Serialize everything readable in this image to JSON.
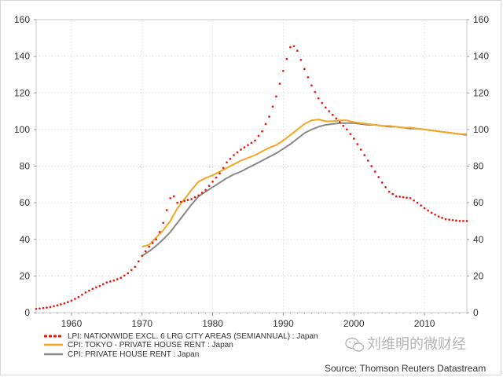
{
  "chart_data": {
    "type": "line",
    "x_range": [
      1955,
      2016
    ],
    "ylim": [
      0,
      160
    ],
    "y_ticks": [
      0,
      20,
      40,
      60,
      80,
      100,
      120,
      140,
      160
    ],
    "x_ticks": [
      1960,
      1970,
      1980,
      1990,
      2000,
      2010
    ],
    "grid": true,
    "legend_position": "bottom-left",
    "series": [
      {
        "name": "LPI: NATIONWIDE EXCL. 6 LRG CITY AREAS (SEMIANNUAL) : Japan",
        "color": "#e8180c",
        "style": "dotted",
        "points": [
          [
            1955,
            2
          ],
          [
            1956,
            2.5
          ],
          [
            1957,
            3
          ],
          [
            1958,
            4
          ],
          [
            1959,
            5
          ],
          [
            1960,
            6.5
          ],
          [
            1961,
            8.5
          ],
          [
            1962,
            11
          ],
          [
            1963,
            13
          ],
          [
            1964,
            14.5
          ],
          [
            1965,
            16.5
          ],
          [
            1966,
            17.5
          ],
          [
            1967,
            19
          ],
          [
            1968,
            21.5
          ],
          [
            1969,
            25
          ],
          [
            1970,
            31
          ],
          [
            1971,
            36
          ],
          [
            1972,
            40
          ],
          [
            1972.5,
            44
          ],
          [
            1973,
            49
          ],
          [
            1973.5,
            56
          ],
          [
            1974,
            62.5
          ],
          [
            1974.5,
            63.5
          ],
          [
            1975,
            60
          ],
          [
            1976,
            61
          ],
          [
            1977,
            62
          ],
          [
            1978,
            64
          ],
          [
            1979,
            67
          ],
          [
            1980,
            71.5
          ],
          [
            1981,
            76
          ],
          [
            1982,
            82
          ],
          [
            1983,
            86
          ],
          [
            1984,
            89
          ],
          [
            1985,
            91.5
          ],
          [
            1986,
            94
          ],
          [
            1987,
            99
          ],
          [
            1988,
            107
          ],
          [
            1989,
            118
          ],
          [
            1990,
            132
          ],
          [
            1991,
            145
          ],
          [
            1991.5,
            145.5
          ],
          [
            1992,
            143
          ],
          [
            1993,
            133
          ],
          [
            1994,
            124
          ],
          [
            1995,
            117
          ],
          [
            1996,
            112
          ],
          [
            1997,
            108
          ],
          [
            1998,
            104
          ],
          [
            1999,
            100
          ],
          [
            2000,
            95
          ],
          [
            2001,
            89
          ],
          [
            2002,
            83
          ],
          [
            2003,
            77
          ],
          [
            2004,
            71
          ],
          [
            2005,
            66
          ],
          [
            2006,
            63.5
          ],
          [
            2007,
            63
          ],
          [
            2008,
            62.5
          ],
          [
            2009,
            60
          ],
          [
            2010,
            57
          ],
          [
            2011,
            54.5
          ],
          [
            2012,
            52.5
          ],
          [
            2013,
            51
          ],
          [
            2014,
            50.5
          ],
          [
            2015,
            50
          ],
          [
            2016,
            50
          ]
        ]
      },
      {
        "name": "CPI: TOKYO - PRIVATE HOUSE RENT : Japan",
        "color": "#f5a623",
        "style": "solid",
        "points": [
          [
            1970,
            36
          ],
          [
            1971,
            37
          ],
          [
            1972,
            41
          ],
          [
            1973,
            45
          ],
          [
            1974,
            50
          ],
          [
            1975,
            57
          ],
          [
            1976,
            62
          ],
          [
            1977,
            67
          ],
          [
            1978,
            71.5
          ],
          [
            1979,
            73.5
          ],
          [
            1980,
            75
          ],
          [
            1981,
            77
          ],
          [
            1982,
            79
          ],
          [
            1983,
            81
          ],
          [
            1984,
            83
          ],
          [
            1985,
            84.5
          ],
          [
            1986,
            86
          ],
          [
            1987,
            88
          ],
          [
            1988,
            90
          ],
          [
            1989,
            91.5
          ],
          [
            1990,
            94
          ],
          [
            1991,
            97
          ],
          [
            1992,
            100
          ],
          [
            1993,
            103
          ],
          [
            1994,
            105
          ],
          [
            1995,
            105.5
          ],
          [
            1996,
            104.5
          ],
          [
            1997,
            104.5
          ],
          [
            1998,
            105
          ],
          [
            1999,
            105
          ],
          [
            2000,
            104
          ],
          [
            2001,
            103.5
          ],
          [
            2002,
            103
          ],
          [
            2003,
            102.5
          ],
          [
            2004,
            102
          ],
          [
            2005,
            102
          ],
          [
            2006,
            101.5
          ],
          [
            2007,
            101
          ],
          [
            2008,
            101
          ],
          [
            2009,
            100.5
          ],
          [
            2010,
            100
          ],
          [
            2011,
            99.5
          ],
          [
            2012,
            99
          ],
          [
            2013,
            98.5
          ],
          [
            2014,
            98
          ],
          [
            2015,
            97.5
          ],
          [
            2016,
            97.5
          ]
        ]
      },
      {
        "name": "CPI: PRIVATE HOUSE RENT : Japan",
        "color": "#888888",
        "style": "solid",
        "points": [
          [
            1970,
            31
          ],
          [
            1971,
            33.5
          ],
          [
            1972,
            36.5
          ],
          [
            1973,
            40
          ],
          [
            1974,
            44
          ],
          [
            1975,
            49
          ],
          [
            1976,
            54
          ],
          [
            1977,
            59
          ],
          [
            1978,
            63.5
          ],
          [
            1979,
            66
          ],
          [
            1980,
            68.5
          ],
          [
            1981,
            71
          ],
          [
            1982,
            73.5
          ],
          [
            1983,
            75.5
          ],
          [
            1984,
            77
          ],
          [
            1985,
            79
          ],
          [
            1986,
            81
          ],
          [
            1987,
            83
          ],
          [
            1988,
            85
          ],
          [
            1989,
            87
          ],
          [
            1990,
            89.5
          ],
          [
            1991,
            92
          ],
          [
            1992,
            95
          ],
          [
            1993,
            98
          ],
          [
            1994,
            100
          ],
          [
            1995,
            101.5
          ],
          [
            1996,
            102.5
          ],
          [
            1997,
            103
          ],
          [
            1998,
            103.5
          ],
          [
            1999,
            103.5
          ],
          [
            2000,
            103.5
          ],
          [
            2001,
            103
          ],
          [
            2002,
            102.5
          ],
          [
            2003,
            102.5
          ],
          [
            2004,
            102
          ],
          [
            2005,
            101.5
          ],
          [
            2006,
            101.5
          ],
          [
            2007,
            101
          ],
          [
            2008,
            100.5
          ],
          [
            2009,
            100.5
          ],
          [
            2010,
            100
          ],
          [
            2011,
            99.5
          ],
          [
            2012,
            99
          ],
          [
            2013,
            98.5
          ],
          [
            2014,
            98
          ],
          [
            2015,
            97.5
          ],
          [
            2016,
            97
          ]
        ]
      }
    ]
  },
  "source_text": "Source: Thomson Reuters Datastream",
  "watermark_text": "刘维明的微财经"
}
